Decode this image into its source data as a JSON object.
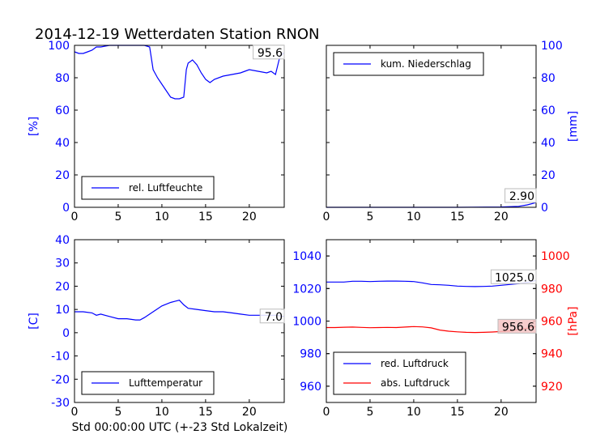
{
  "title": "2014-12-19 Wetterdaten Station RNON",
  "xlabel": "Std 00:00:00 UTC (+-23 Std Lokalzeit)",
  "colors": {
    "blue": "#0000ff",
    "red": "#ff0000",
    "axis": "#000000",
    "label_box": "#ffffff"
  },
  "chart_data": [
    {
      "type": "line",
      "panel": "top-left",
      "ylabel": "[%]",
      "ylabel_color": "#0000ff",
      "xlim": [
        0,
        24
      ],
      "ylim": [
        0,
        100
      ],
      "xticks": [
        0,
        5,
        10,
        15,
        20
      ],
      "yticks": [
        0,
        20,
        40,
        60,
        80,
        100
      ],
      "y_tick_color": "#0000ff",
      "legend_position": "lower-center",
      "series": [
        {
          "name": "rel. Luftfeuchte",
          "color": "#0000ff",
          "x": [
            0,
            0.5,
            1,
            1.5,
            2,
            2.5,
            3,
            4,
            5,
            6,
            7,
            8,
            8.6,
            9,
            9.5,
            10,
            10.5,
            11,
            11.5,
            12,
            12.5,
            12.8,
            13,
            13.5,
            14,
            14.5,
            15,
            15.5,
            16,
            17,
            18,
            19,
            19.5,
            20,
            21,
            22,
            22.5,
            23,
            23.5,
            24
          ],
          "y": [
            96,
            95,
            95,
            96,
            97,
            99,
            99,
            100,
            100,
            100,
            100,
            100,
            99,
            85,
            80,
            76,
            72,
            68,
            67,
            67,
            68,
            85,
            89,
            91,
            88,
            83,
            79,
            77,
            79,
            81,
            82,
            83,
            84,
            85,
            84,
            83,
            84,
            82,
            93,
            95.6
          ]
        }
      ],
      "annotation": "95.6"
    },
    {
      "type": "line",
      "panel": "top-right",
      "ylabel": "[mm]",
      "ylabel_color": "#0000ff",
      "xlim": [
        0,
        24
      ],
      "ylim": [
        0,
        100
      ],
      "xticks": [
        0,
        5,
        10,
        15,
        20
      ],
      "yticks": [
        0,
        20,
        40,
        60,
        80,
        100
      ],
      "y_tick_color": "#0000ff",
      "legend_position": "upper-left",
      "series": [
        {
          "name": "kum. Niederschlag",
          "color": "#0000ff",
          "x": [
            0,
            5,
            10,
            15,
            20,
            22,
            23,
            24
          ],
          "y": [
            0,
            0,
            0,
            0,
            0.2,
            0.6,
            1.5,
            2.9
          ]
        }
      ],
      "annotation": "2.90"
    },
    {
      "type": "line",
      "panel": "bottom-left",
      "ylabel": "[C]",
      "ylabel_color": "#0000ff",
      "xlim": [
        0,
        24
      ],
      "ylim": [
        -30,
        40
      ],
      "xticks": [
        0,
        5,
        10,
        15,
        20
      ],
      "yticks": [
        -30,
        -20,
        -10,
        0,
        10,
        20,
        30,
        40
      ],
      "y_tick_color": "#0000ff",
      "legend_position": "lower-center",
      "series": [
        {
          "name": "Lufttemperatur",
          "color": "#0000ff",
          "x": [
            0,
            1,
            2,
            2.5,
            3,
            4,
            5,
            6,
            7,
            7.5,
            8,
            9,
            10,
            11,
            11.5,
            12,
            12.5,
            13,
            14,
            15,
            16,
            17,
            18,
            19,
            20,
            21,
            22,
            23,
            24
          ],
          "y": [
            9,
            9,
            8.5,
            7.5,
            8,
            7,
            6,
            6,
            5.5,
            5.5,
            6.5,
            9,
            11.5,
            13,
            13.5,
            14,
            12,
            10.5,
            10,
            9.5,
            9,
            9,
            8.5,
            8,
            7.5,
            7.5,
            7.5,
            7.5,
            7
          ]
        }
      ],
      "annotation": "7.0"
    },
    {
      "type": "line",
      "panel": "bottom-right",
      "ylabel": "[hPa]",
      "ylabel_color": "#ff0000",
      "xlim": [
        0,
        24
      ],
      "ylim_left": [
        950,
        1050
      ],
      "ylim_right": [
        910,
        1010
      ],
      "xticks": [
        0,
        5,
        10,
        15,
        20
      ],
      "yticks_left": [
        960,
        980,
        1000,
        1020,
        1040
      ],
      "yticks_right": [
        920,
        940,
        960,
        980,
        1000
      ],
      "y_tick_color_left": "#0000ff",
      "y_tick_color_right": "#ff0000",
      "legend_position": "lower-left",
      "series": [
        {
          "name": "red. Luftdruck",
          "color": "#0000ff",
          "axis": "left",
          "x": [
            0,
            1,
            2,
            3,
            4,
            5,
            6,
            7,
            8,
            9,
            10,
            11,
            12,
            13,
            14,
            15,
            16,
            17,
            18,
            19,
            20,
            21,
            22,
            23,
            24
          ],
          "y": [
            1024,
            1024,
            1024,
            1024.5,
            1024.5,
            1024.3,
            1024.5,
            1024.6,
            1024.6,
            1024.5,
            1024.3,
            1023.5,
            1022.5,
            1022.3,
            1022,
            1021.5,
            1021.3,
            1021.2,
            1021.3,
            1021.5,
            1022,
            1022.5,
            1023,
            1023.8,
            1025
          ]
        },
        {
          "name": "abs. Luftdruck",
          "color": "#ff0000",
          "axis": "right",
          "x": [
            0,
            1,
            2,
            3,
            4,
            5,
            6,
            7,
            8,
            9,
            10,
            11,
            12,
            13,
            14,
            15,
            16,
            17,
            18,
            19,
            20,
            21,
            22,
            23,
            24
          ],
          "y": [
            956,
            956,
            956.2,
            956.3,
            956.1,
            955.9,
            956,
            956.1,
            956,
            956.3,
            956.6,
            956.4,
            955.8,
            954.5,
            953.8,
            953.4,
            953.1,
            953,
            953.1,
            953.3,
            953.6,
            954,
            954.8,
            955.6,
            956.6
          ]
        }
      ],
      "annotation_left": "1025.0",
      "annotation_right": "956.6"
    }
  ]
}
